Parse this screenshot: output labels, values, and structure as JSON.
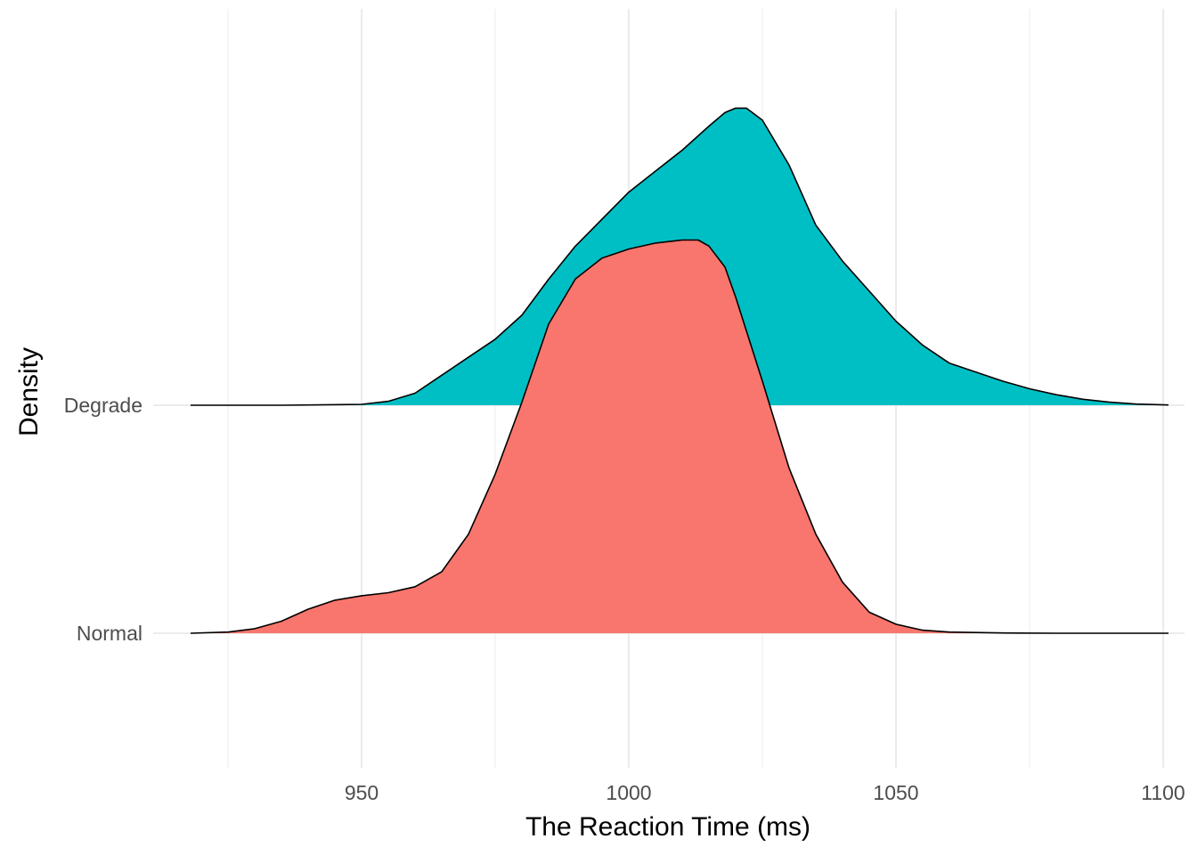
{
  "chart_data": {
    "type": "area",
    "title": "",
    "xlabel": "The Reaction Time (ms)",
    "ylabel": "Density",
    "xlim": [
      911,
      1104
    ],
    "x_ticks": [
      950,
      1000,
      1050,
      1100
    ],
    "grid": true,
    "legend": "none",
    "series": [
      {
        "name": "Degrade",
        "color": "#00BFC4",
        "x": [
          918,
          935,
          950,
          955,
          960,
          965,
          970,
          975,
          980,
          985,
          990,
          995,
          1000,
          1005,
          1010,
          1015,
          1018,
          1020,
          1022,
          1025,
          1030,
          1035,
          1040,
          1045,
          1050,
          1055,
          1060,
          1065,
          1070,
          1075,
          1080,
          1085,
          1090,
          1095,
          1101
        ],
        "density": [
          0.0,
          0.0,
          0.003,
          0.013,
          0.04,
          0.1,
          0.16,
          0.22,
          0.3,
          0.42,
          0.53,
          0.62,
          0.71,
          0.78,
          0.85,
          0.93,
          0.975,
          0.99,
          0.99,
          0.95,
          0.8,
          0.6,
          0.48,
          0.38,
          0.28,
          0.2,
          0.14,
          0.11,
          0.08,
          0.055,
          0.035,
          0.02,
          0.01,
          0.004,
          0.001
        ]
      },
      {
        "name": "Normal",
        "color": "#F8766D",
        "x": [
          918,
          925,
          930,
          935,
          940,
          945,
          950,
          955,
          960,
          965,
          970,
          975,
          980,
          985,
          990,
          995,
          1000,
          1005,
          1010,
          1013,
          1015,
          1018,
          1020,
          1025,
          1030,
          1035,
          1040,
          1045,
          1050,
          1055,
          1060,
          1070,
          1080,
          1101
        ],
        "density": [
          0.0,
          0.004,
          0.015,
          0.04,
          0.08,
          0.11,
          0.125,
          0.135,
          0.155,
          0.205,
          0.33,
          0.53,
          0.77,
          1.03,
          1.18,
          1.25,
          1.28,
          1.3,
          1.31,
          1.31,
          1.29,
          1.22,
          1.12,
          0.84,
          0.55,
          0.33,
          0.17,
          0.07,
          0.03,
          0.01,
          0.004,
          0.001,
          0.0,
          0.0
        ]
      }
    ]
  }
}
